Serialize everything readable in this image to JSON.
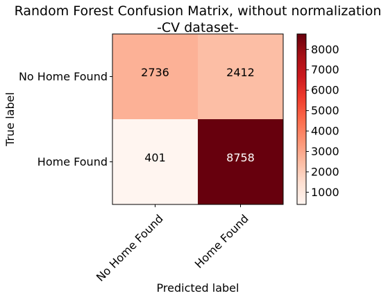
{
  "chart_data": {
    "type": "heatmap",
    "title_lines": [
      "Random Forest Confusion Matrix, without normalization",
      "-CV dataset-"
    ],
    "xlabel": "Predicted label",
    "ylabel": "True label",
    "x_categories": [
      "No Home Found",
      "Home Found"
    ],
    "y_categories": [
      "No Home Found",
      "Home Found"
    ],
    "values": [
      [
        2736,
        2412
      ],
      [
        401,
        8758
      ]
    ],
    "colormap": "Reds",
    "colorbar_ticks": [
      1000,
      2000,
      3000,
      4000,
      5000,
      6000,
      7000,
      8000
    ],
    "colorbar_range": [
      401,
      8758
    ]
  },
  "colors": {
    "text_dark": "#000000",
    "text_light": "#ffffff"
  }
}
